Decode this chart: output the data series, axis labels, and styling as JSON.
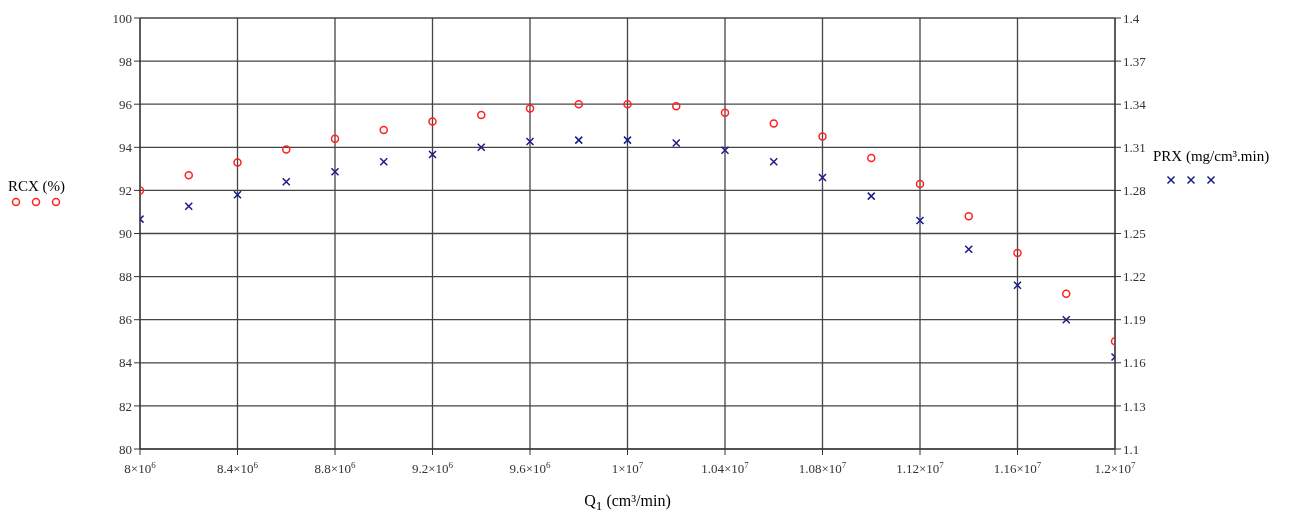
{
  "chart_data": {
    "type": "scatter",
    "x": [
      8000000,
      8200000,
      8400000,
      8600000,
      8800000,
      9000000,
      9200000,
      9400000,
      9600000,
      9800000,
      10000000,
      10200000,
      10400000,
      10600000,
      10800000,
      11000000,
      11200000,
      11400000,
      11600000,
      11800000,
      12000000
    ],
    "series": [
      {
        "color": "#ff2020",
        "marker": "circle",
        "values": [
          92.0,
          92.7,
          93.3,
          93.9,
          94.4,
          94.8,
          95.2,
          95.5,
          95.8,
          96.0,
          96.0,
          95.9,
          95.6,
          95.1,
          94.5,
          93.5,
          92.3,
          90.8,
          89.1,
          87.2,
          85.0
        ]
      },
      {
        "color": "#1a1a8c",
        "marker": "cross",
        "axis": "y2",
        "values": [
          1.26,
          1.269,
          1.277,
          1.286,
          1.293,
          1.3,
          1.305,
          1.31,
          1.314,
          1.315,
          1.315,
          1.313,
          1.308,
          1.3,
          1.289,
          1.276,
          1.259,
          1.239,
          1.214,
          1.19,
          1.164
        ]
      }
    ],
    "xlabel": "Q$_{1}$ (cm³/min)",
    "ylabel": "RCX (%)",
    "y2label": "PRX (mg/cm³.min)",
    "xlim": [
      8000000,
      12000000
    ],
    "xticks": [
      {
        "value": 8000000,
        "label": "8×10$^{6}$"
      },
      {
        "value": 8400000,
        "label": "8.4×10$^{6}$"
      },
      {
        "value": 8800000,
        "label": "8.8×10$^{6}$"
      },
      {
        "value": 9200000,
        "label": "9.2×10$^{6}$"
      },
      {
        "value": 9600000,
        "label": "9.6×10$^{6}$"
      },
      {
        "value": 10000000,
        "label": "1×10$^{7}$"
      },
      {
        "value": 10400000,
        "label": "1.04×10$^{7}$"
      },
      {
        "value": 10800000,
        "label": "1.08×10$^{7}$"
      },
      {
        "value": 11200000,
        "label": "1.12×10$^{7}$"
      },
      {
        "value": 11600000,
        "label": "1.16×10$^{7}$"
      },
      {
        "value": 12000000,
        "label": "1.2×10$^{7}$"
      }
    ],
    "ylim": [
      80,
      100
    ],
    "yticks": [
      80,
      82,
      84,
      86,
      88,
      90,
      92,
      94,
      96,
      98,
      100
    ],
    "y2lim": [
      1.1,
      1.4
    ],
    "y2ticks": [
      1.1,
      1.13,
      1.16,
      1.19,
      1.22,
      1.25,
      1.28,
      1.31,
      1.34,
      1.37,
      1.4
    ],
    "grid": true
  }
}
